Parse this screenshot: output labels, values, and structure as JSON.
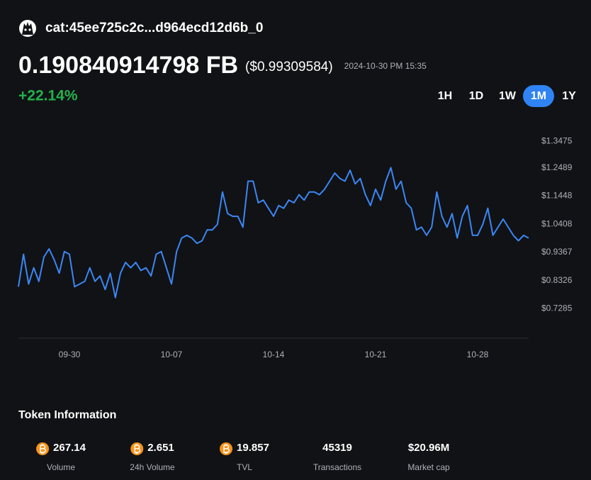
{
  "header": {
    "token": "cat:45ee725c2c...d964ecd12d6b_0",
    "price": "0.190840914798 FB",
    "usd_price": "($0.99309584)",
    "timestamp": "2024-10-30 PM 15:35",
    "change": "+22.14%"
  },
  "ranges": [
    "1H",
    "1D",
    "1W",
    "1M",
    "1Y"
  ],
  "active_range": "1M",
  "chart_data": {
    "type": "line",
    "color": "#3b87f5",
    "xlim": [
      0,
      100
    ],
    "xticks": [
      {
        "value": 10,
        "label": "09-30"
      },
      {
        "value": 30,
        "label": "10-07"
      },
      {
        "value": 50,
        "label": "10-14"
      },
      {
        "value": 70,
        "label": "10-21"
      },
      {
        "value": 90,
        "label": "10-28"
      }
    ],
    "ylim": [
      0.62,
      1.45
    ],
    "yticks": [
      {
        "value": 1.3475,
        "label": "$1.3475"
      },
      {
        "value": 1.2489,
        "label": "$1.2489"
      },
      {
        "value": 1.1448,
        "label": "$1.1448"
      },
      {
        "value": 1.0408,
        "label": "$1.0408"
      },
      {
        "value": 0.9367,
        "label": "$0.9367"
      },
      {
        "value": 0.8326,
        "label": "$0.8326"
      },
      {
        "value": 0.7285,
        "label": "$0.7285"
      }
    ],
    "values": [
      0.81,
      0.93,
      0.82,
      0.88,
      0.83,
      0.92,
      0.95,
      0.91,
      0.86,
      0.94,
      0.93,
      0.81,
      0.82,
      0.83,
      0.88,
      0.83,
      0.85,
      0.8,
      0.86,
      0.77,
      0.86,
      0.9,
      0.88,
      0.9,
      0.87,
      0.88,
      0.85,
      0.93,
      0.94,
      0.88,
      0.82,
      0.94,
      0.99,
      1.0,
      0.99,
      0.97,
      0.98,
      1.02,
      1.02,
      1.04,
      1.16,
      1.08,
      1.07,
      1.07,
      1.03,
      1.2,
      1.2,
      1.12,
      1.13,
      1.1,
      1.07,
      1.11,
      1.1,
      1.13,
      1.12,
      1.15,
      1.13,
      1.16,
      1.16,
      1.15,
      1.17,
      1.2,
      1.23,
      1.21,
      1.2,
      1.24,
      1.19,
      1.21,
      1.15,
      1.11,
      1.17,
      1.13,
      1.2,
      1.25,
      1.17,
      1.2,
      1.12,
      1.1,
      1.02,
      1.03,
      1.0,
      1.03,
      1.16,
      1.07,
      1.03,
      1.08,
      0.99,
      1.07,
      1.11,
      1.0,
      1.0,
      1.04,
      1.1,
      1.0,
      1.03,
      1.06,
      1.03,
      1.0,
      0.98,
      1.0,
      0.99
    ]
  },
  "info": {
    "title": "Token Information",
    "stats": [
      {
        "value": "267.14",
        "label": "Volume",
        "icon": true
      },
      {
        "value": "2.651",
        "label": "24h Volume",
        "icon": true
      },
      {
        "value": "19.857",
        "label": "TVL",
        "icon": true
      },
      {
        "value": "45319",
        "label": "Transactions",
        "icon": false
      },
      {
        "value": "$20.96M",
        "label": "Market cap",
        "icon": false
      }
    ]
  }
}
